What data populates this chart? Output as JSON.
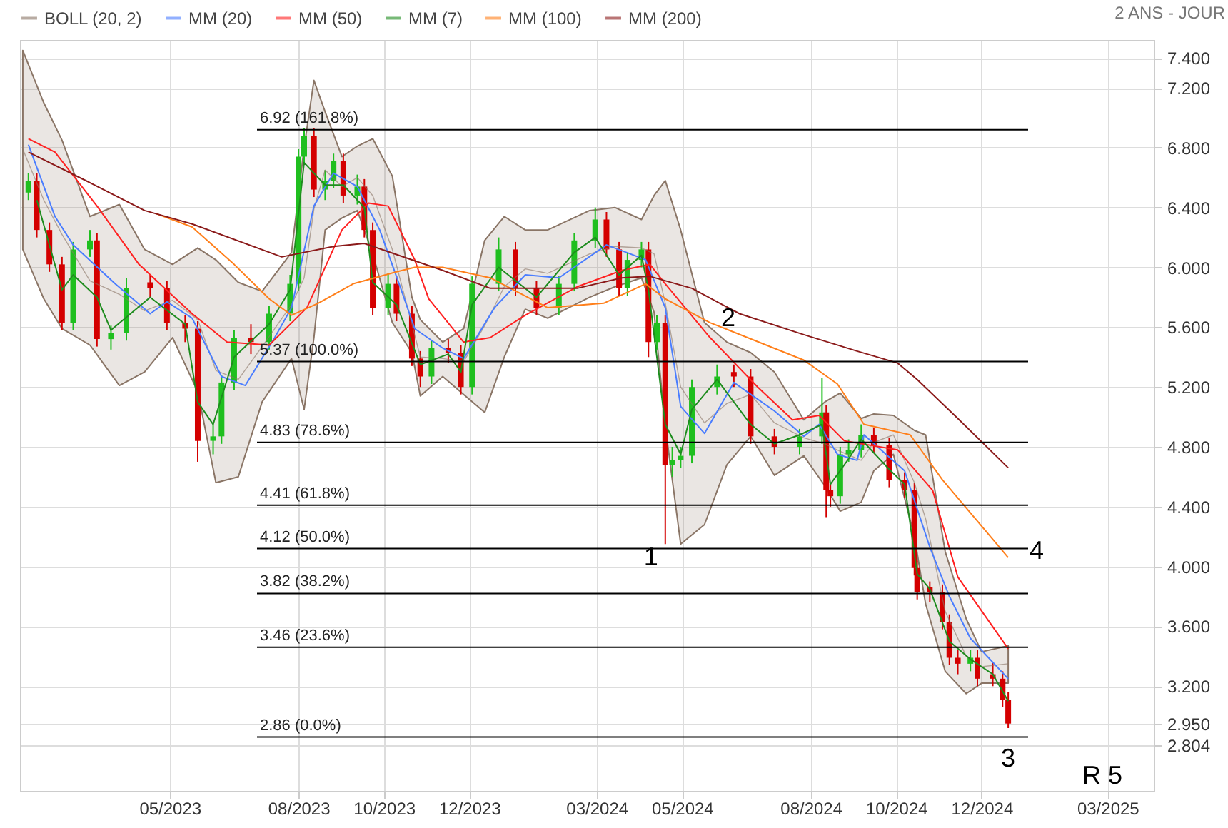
{
  "chart_data": {
    "type": "candlestick",
    "x": [
      "2023-01-20",
      "2023-01-26",
      "2023-02-04",
      "2023-02-13",
      "2023-02-21",
      "2023-03-05",
      "2023-03-10",
      "2023-03-20",
      "2023-03-31",
      "2023-04-17",
      "2023-04-29",
      "2023-05-12",
      "2023-05-21",
      "2023-06-01",
      "2023-06-07",
      "2023-06-16",
      "2023-06-28",
      "2023-07-11",
      "2023-07-26",
      "2023-08-01",
      "2023-08-05",
      "2023-08-12",
      "2023-08-20",
      "2023-08-26",
      "2023-09-02",
      "2023-09-12",
      "2023-09-17",
      "2023-09-23",
      "2023-10-04",
      "2023-10-10",
      "2023-10-21",
      "2023-10-27",
      "2023-11-04",
      "2023-11-16",
      "2023-11-25",
      "2023-12-03",
      "2023-12-22",
      "2024-01-03",
      "2024-01-18",
      "2024-02-03",
      "2024-02-14",
      "2024-02-29",
      "2024-03-08",
      "2024-03-17",
      "2024-03-23",
      "2024-04-02",
      "2024-04-07",
      "2024-04-13",
      "2024-04-19",
      "2024-04-24",
      "2024-04-30",
      "2024-05-08",
      "2024-05-26",
      "2024-06-07",
      "2024-06-19",
      "2024-07-06",
      "2024-07-24",
      "2024-08-09",
      "2024-08-12",
      "2024-08-15",
      "2024-08-22",
      "2024-08-28",
      "2024-09-06",
      "2024-09-15",
      "2024-09-26",
      "2024-10-07",
      "2024-10-14",
      "2024-10-16",
      "2024-10-25",
      "2024-11-03",
      "2024-11-08",
      "2024-11-14",
      "2024-11-23",
      "2024-11-28",
      "2024-12-09",
      "2024-12-16",
      "2024-12-20"
    ],
    "ohlc": [
      [
        6.5,
        6.63,
        6.45,
        6.58
      ],
      [
        6.58,
        6.63,
        6.2,
        6.25
      ],
      [
        6.25,
        6.3,
        5.97,
        6.02
      ],
      [
        6.02,
        6.07,
        5.58,
        5.63
      ],
      [
        5.63,
        6.17,
        5.58,
        6.12
      ],
      [
        6.12,
        6.25,
        6.07,
        6.18
      ],
      [
        6.18,
        6.23,
        5.47,
        5.52
      ],
      [
        5.52,
        5.61,
        5.45,
        5.56
      ],
      [
        5.56,
        5.93,
        5.51,
        5.86
      ],
      [
        5.9,
        5.95,
        5.8,
        5.86
      ],
      [
        5.86,
        5.91,
        5.58,
        5.63
      ],
      [
        5.63,
        5.68,
        5.5,
        5.59
      ],
      [
        5.59,
        5.64,
        4.7,
        4.84
      ],
      [
        4.84,
        4.95,
        4.75,
        4.87
      ],
      [
        4.87,
        5.28,
        4.82,
        5.23
      ],
      [
        5.23,
        5.58,
        5.18,
        5.53
      ],
      [
        5.53,
        5.62,
        5.42,
        5.5
      ],
      [
        5.5,
        5.74,
        5.45,
        5.69
      ],
      [
        5.69,
        5.95,
        5.64,
        5.89
      ],
      [
        5.89,
        6.79,
        5.84,
        6.74
      ],
      [
        6.74,
        6.93,
        6.69,
        6.88
      ],
      [
        6.88,
        6.93,
        6.47,
        6.52
      ],
      [
        6.52,
        6.65,
        6.45,
        6.58
      ],
      [
        6.58,
        6.76,
        6.53,
        6.71
      ],
      [
        6.71,
        6.76,
        6.43,
        6.48
      ],
      [
        6.48,
        6.62,
        6.42,
        6.54
      ],
      [
        6.54,
        6.59,
        6.2,
        6.25
      ],
      [
        6.25,
        6.3,
        5.68,
        5.73
      ],
      [
        5.73,
        5.96,
        5.68,
        5.89
      ],
      [
        5.89,
        5.94,
        5.64,
        5.69
      ],
      [
        5.69,
        5.74,
        5.34,
        5.39
      ],
      [
        5.39,
        5.44,
        5.2,
        5.27
      ],
      [
        5.27,
        5.51,
        5.22,
        5.46
      ],
      [
        5.46,
        5.52,
        5.36,
        5.43
      ],
      [
        5.43,
        5.48,
        5.15,
        5.2
      ],
      [
        5.2,
        5.94,
        5.15,
        5.89
      ],
      [
        5.89,
        6.2,
        5.84,
        6.12
      ],
      [
        6.12,
        6.17,
        5.81,
        5.86
      ],
      [
        5.86,
        5.91,
        5.68,
        5.73
      ],
      [
        5.73,
        5.94,
        5.68,
        5.89
      ],
      [
        5.89,
        6.23,
        5.84,
        6.18
      ],
      [
        6.18,
        6.4,
        6.13,
        6.32
      ],
      [
        6.32,
        6.37,
        6.07,
        6.12
      ],
      [
        6.12,
        6.17,
        5.81,
        5.86
      ],
      [
        5.86,
        6.1,
        5.81,
        6.05
      ],
      [
        6.05,
        6.17,
        6.0,
        6.12
      ],
      [
        6.12,
        6.17,
        5.4,
        5.5
      ],
      [
        5.5,
        5.68,
        5.45,
        5.63
      ],
      [
        5.63,
        5.68,
        4.15,
        4.68
      ],
      [
        4.68,
        4.8,
        4.6,
        4.71
      ],
      [
        4.71,
        4.8,
        4.66,
        4.74
      ],
      [
        4.74,
        5.25,
        4.69,
        5.2
      ],
      [
        5.2,
        5.35,
        5.15,
        5.27
      ],
      [
        5.3,
        5.35,
        5.2,
        5.27
      ],
      [
        5.27,
        5.32,
        4.82,
        4.87
      ],
      [
        4.87,
        4.92,
        4.75,
        4.8
      ],
      [
        4.8,
        4.92,
        4.75,
        4.87
      ],
      [
        4.87,
        5.26,
        4.82,
        5.03
      ],
      [
        5.03,
        5.08,
        4.33,
        4.51
      ],
      [
        4.51,
        4.56,
        4.4,
        4.47
      ],
      [
        4.47,
        4.8,
        4.42,
        4.75
      ],
      [
        4.75,
        4.85,
        4.7,
        4.78
      ],
      [
        4.78,
        4.95,
        4.73,
        4.88
      ],
      [
        4.88,
        4.93,
        4.76,
        4.81
      ],
      [
        4.81,
        4.86,
        4.53,
        4.58
      ],
      [
        4.58,
        4.63,
        4.46,
        4.51
      ],
      [
        4.51,
        4.56,
        3.94,
        3.99
      ],
      [
        3.99,
        4.04,
        3.78,
        3.83
      ],
      [
        3.86,
        3.9,
        3.76,
        3.83
      ],
      [
        3.83,
        3.88,
        3.58,
        3.63
      ],
      [
        3.63,
        3.68,
        3.34,
        3.39
      ],
      [
        3.39,
        3.44,
        3.28,
        3.35
      ],
      [
        3.35,
        3.44,
        3.3,
        3.39
      ],
      [
        3.39,
        3.44,
        3.2,
        3.25
      ],
      [
        3.28,
        3.36,
        3.2,
        3.25
      ],
      [
        3.25,
        3.3,
        3.06,
        3.11
      ],
      [
        3.11,
        3.16,
        2.92,
        2.95
      ]
    ],
    "colors": [
      "#1fbf1f",
      "#d40000",
      "#d40000",
      "#d40000",
      "#1fbf1f",
      "#1fbf1f",
      "#d40000",
      "#1fbf1f",
      "#1fbf1f",
      "#d40000",
      "#d40000",
      "#d40000",
      "#d40000",
      "#1fbf1f",
      "#1fbf1f",
      "#1fbf1f",
      "#d40000",
      "#1fbf1f",
      "#1fbf1f",
      "#1fbf1f",
      "#1fbf1f",
      "#d40000",
      "#1fbf1f",
      "#1fbf1f",
      "#d40000",
      "#1fbf1f",
      "#d40000",
      "#d40000",
      "#1fbf1f",
      "#d40000",
      "#d40000",
      "#d40000",
      "#1fbf1f",
      "#d40000",
      "#d40000",
      "#1fbf1f",
      "#1fbf1f",
      "#d40000",
      "#d40000",
      "#1fbf1f",
      "#1fbf1f",
      "#1fbf1f",
      "#d40000",
      "#d40000",
      "#1fbf1f",
      "#1fbf1f",
      "#d40000",
      "#1fbf1f",
      "#d40000",
      "#1fbf1f",
      "#1fbf1f",
      "#1fbf1f",
      "#1fbf1f",
      "#d40000",
      "#d40000",
      "#d40000",
      "#1fbf1f",
      "#1fbf1f",
      "#d40000",
      "#d40000",
      "#1fbf1f",
      "#1fbf1f",
      "#1fbf1f",
      "#d40000",
      "#d40000",
      "#d40000",
      "#d40000",
      "#d40000",
      "#d40000",
      "#d40000",
      "#d40000",
      "#d40000",
      "#1fbf1f",
      "#d40000",
      "#d40000",
      "#d40000",
      "#d40000"
    ],
    "series": [
      {
        "name": "BOLL (20, 2)",
        "type": "line",
        "color": "#8a7566",
        "values": [
          6.79,
          6.45,
          6.22,
          5.91,
          5.82,
          5.71,
          5.78,
          5.65,
          5.31,
          5.25,
          5.47,
          5.75,
          5.93,
          6.39,
          6.65,
          6.54,
          6.6,
          6.48,
          6.12,
          5.62,
          5.4,
          5.39,
          5.37,
          5.61,
          5.87,
          5.99,
          5.96,
          6.09,
          6.14,
          6.13,
          6.09,
          5.76,
          5.2,
          4.96,
          5.09,
          5.15,
          4.96,
          4.86,
          4.82,
          4.77,
          4.71,
          4.83,
          4.88,
          4.56,
          4.32,
          3.7,
          3.4,
          3.33,
          3.35
        ],
        "x": [
          "2023-01-16",
          "2023-01-31",
          "2023-02-13",
          "2023-03-05",
          "2023-03-26",
          "2023-04-13",
          "2023-05-03",
          "2023-05-21",
          "2023-06-03",
          "2023-06-19",
          "2023-07-06",
          "2023-07-27",
          "2023-08-05",
          "2023-08-12",
          "2023-08-20",
          "2023-09-01",
          "2023-09-12",
          "2023-09-23",
          "2023-10-07",
          "2023-10-21",
          "2023-10-27",
          "2023-11-12",
          "2023-11-27",
          "2023-12-12",
          "2023-12-26",
          "2024-01-10",
          "2024-01-26",
          "2024-02-25",
          "2024-03-14",
          "2024-04-02",
          "2024-04-11",
          "2024-04-19",
          "2024-04-30",
          "2024-05-17",
          "2024-06-02",
          "2024-06-19",
          "2024-07-06",
          "2024-07-27",
          "2024-08-11",
          "2024-08-22",
          "2024-09-06",
          "2024-09-15",
          "2024-09-29",
          "2024-10-14",
          "2024-10-22",
          "2024-11-05",
          "2024-11-20",
          "2024-12-01",
          "2024-12-20"
        ],
        "lower": [
          6.12,
          5.79,
          5.59,
          5.48,
          5.21,
          5.3,
          5.53,
          5.17,
          4.56,
          4.6,
          5.1,
          5.39,
          5.05,
          5.53,
          6.25,
          6.33,
          6.38,
          6.09,
          5.63,
          5.43,
          5.14,
          5.27,
          5.15,
          5.03,
          5.4,
          5.72,
          5.66,
          5.8,
          5.87,
          5.93,
          5.7,
          4.94,
          4.15,
          4.28,
          4.68,
          4.87,
          4.61,
          4.74,
          4.54,
          4.37,
          4.43,
          4.64,
          4.75,
          4.2,
          3.75,
          3.3,
          3.15,
          3.22,
          3.22
        ],
        "upper": [
          7.45,
          7.1,
          6.85,
          6.34,
          6.42,
          6.12,
          6.02,
          6.13,
          6.05,
          5.9,
          5.84,
          6.1,
          6.8,
          7.25,
          7.04,
          6.74,
          6.81,
          6.86,
          6.61,
          5.8,
          5.65,
          5.5,
          5.59,
          6.18,
          6.34,
          6.25,
          6.25,
          6.38,
          6.4,
          6.32,
          6.48,
          6.58,
          6.25,
          5.63,
          5.5,
          5.43,
          5.3,
          4.98,
          5.1,
          5.16,
          4.99,
          5.02,
          5.01,
          4.91,
          4.88,
          4.1,
          3.65,
          3.43,
          3.47
        ]
      },
      {
        "name": "MM (20)",
        "type": "line",
        "color": "#4a7dff",
        "x": [
          "2023-01-20",
          "2023-02-08",
          "2023-02-21",
          "2023-03-23",
          "2023-04-17",
          "2023-04-29",
          "2023-05-17",
          "2023-06-07",
          "2023-06-24",
          "2023-07-15",
          "2023-07-27",
          "2023-08-12",
          "2023-08-26",
          "2023-09-12",
          "2023-09-28",
          "2023-10-13",
          "2023-10-23",
          "2023-11-12",
          "2023-11-27",
          "2023-12-19",
          "2024-01-10",
          "2024-02-03",
          "2024-03-08",
          "2024-03-25",
          "2024-04-05",
          "2024-04-19",
          "2024-04-30",
          "2024-05-17",
          "2024-06-07",
          "2024-07-06",
          "2024-07-27",
          "2024-08-07",
          "2024-08-20",
          "2024-09-03",
          "2024-09-08",
          "2024-10-07",
          "2024-10-25",
          "2024-11-08",
          "2024-11-23",
          "2024-12-20"
        ],
        "values": [
          6.82,
          6.34,
          6.15,
          5.89,
          5.69,
          5.77,
          5.66,
          5.27,
          5.21,
          5.53,
          5.73,
          6.41,
          6.63,
          6.54,
          6.25,
          5.86,
          5.59,
          5.46,
          5.39,
          5.73,
          5.95,
          5.93,
          6.15,
          6.09,
          6.05,
          5.73,
          5.07,
          4.89,
          5.23,
          5.04,
          4.87,
          4.95,
          4.75,
          4.71,
          4.88,
          4.64,
          4.13,
          3.8,
          3.52,
          3.25
        ]
      },
      {
        "name": "MM (50)",
        "type": "line",
        "color": "#ff2020",
        "x": [
          "2023-01-20",
          "2023-02-08",
          "2023-03-10",
          "2023-04-09",
          "2023-05-17",
          "2023-06-11",
          "2023-07-11",
          "2023-08-07",
          "2023-09-01",
          "2023-09-20",
          "2023-10-04",
          "2023-10-23",
          "2023-11-02",
          "2023-11-27",
          "2023-12-16",
          "2024-01-10",
          "2024-02-16",
          "2024-03-19",
          "2024-04-08",
          "2024-04-19",
          "2024-05-21",
          "2024-06-24",
          "2024-07-19",
          "2024-08-07",
          "2024-08-25",
          "2024-10-02",
          "2024-10-27",
          "2024-11-14",
          "2024-12-20"
        ],
        "values": [
          6.86,
          6.77,
          6.41,
          6.02,
          5.69,
          5.5,
          5.48,
          5.73,
          6.25,
          6.43,
          6.41,
          6.05,
          5.79,
          5.5,
          5.53,
          5.68,
          5.87,
          5.98,
          6.02,
          5.89,
          5.53,
          5.2,
          4.98,
          5.01,
          4.84,
          4.78,
          4.51,
          3.93,
          3.45
        ]
      },
      {
        "name": "MM (7)",
        "type": "line",
        "color": "#1e8c1e",
        "x": [
          "2023-01-26",
          "2023-02-13",
          "2023-02-21",
          "2023-03-10",
          "2023-03-20",
          "2023-04-17",
          "2023-05-12",
          "2023-05-21",
          "2023-06-01",
          "2023-06-16",
          "2023-07-11",
          "2023-07-26",
          "2023-08-05",
          "2023-08-20",
          "2023-09-02",
          "2023-09-17",
          "2023-09-23",
          "2023-10-10",
          "2023-10-27",
          "2023-11-16",
          "2023-11-25",
          "2023-12-03",
          "2023-12-22",
          "2024-01-18",
          "2024-02-14",
          "2024-02-29",
          "2024-03-17",
          "2024-04-02",
          "2024-04-07",
          "2024-04-19",
          "2024-04-30",
          "2024-05-08",
          "2024-05-26",
          "2024-06-19",
          "2024-07-06",
          "2024-07-24",
          "2024-08-09",
          "2024-08-15",
          "2024-08-28",
          "2024-09-06",
          "2024-09-26",
          "2024-10-07",
          "2024-10-16",
          "2024-10-25",
          "2024-11-08",
          "2024-11-23",
          "2024-12-09",
          "2024-12-20"
        ],
        "values": [
          6.45,
          5.85,
          5.95,
          5.8,
          5.58,
          5.8,
          5.62,
          5.1,
          4.95,
          5.4,
          5.62,
          5.85,
          6.7,
          6.55,
          6.55,
          6.4,
          5.9,
          5.75,
          5.35,
          5.42,
          5.3,
          5.75,
          6.0,
          5.8,
          6.1,
          6.2,
          5.95,
          6.08,
          5.85,
          4.95,
          4.75,
          5.05,
          5.25,
          4.95,
          4.82,
          4.88,
          4.95,
          4.55,
          4.72,
          4.85,
          4.65,
          4.55,
          3.95,
          3.85,
          3.5,
          3.38,
          3.28,
          3.1
        ]
      },
      {
        "name": "MM (100)",
        "type": "line",
        "color": "#ff7f1a",
        "x": [
          "2023-04-21",
          "2023-05-17",
          "2023-06-16",
          "2023-07-11",
          "2023-07-27",
          "2023-08-15",
          "2023-09-09",
          "2023-10-10",
          "2023-10-23",
          "2023-11-12",
          "2023-12-16",
          "2024-01-26",
          "2024-03-06",
          "2024-04-05",
          "2024-04-19",
          "2024-05-21",
          "2024-07-27",
          "2024-08-20",
          "2024-09-08",
          "2024-10-11",
          "2024-11-03",
          "2024-12-20"
        ],
        "values": [
          6.36,
          6.27,
          6.02,
          5.79,
          5.68,
          5.76,
          5.89,
          5.97,
          6.0,
          6.0,
          5.93,
          5.73,
          5.76,
          5.89,
          5.79,
          5.63,
          5.38,
          5.22,
          4.95,
          4.88,
          4.58,
          4.06
        ]
      },
      {
        "name": "MM (200)",
        "type": "line",
        "color": "#8b1a1a",
        "x": [
          "2023-01-20",
          "2023-03-02",
          "2023-04-13",
          "2023-05-17",
          "2023-07-20",
          "2023-08-26",
          "2023-09-17",
          "2023-10-21",
          "2023-11-12",
          "2023-12-16",
          "2024-02-16",
          "2024-03-19",
          "2024-04-08",
          "2024-05-08",
          "2024-06-11",
          "2024-07-27",
          "2024-09-03",
          "2024-10-02",
          "2024-10-16",
          "2024-11-14",
          "2024-12-20"
        ],
        "values": [
          6.77,
          6.58,
          6.38,
          6.29,
          6.07,
          6.14,
          6.16,
          6.05,
          5.98,
          5.86,
          5.86,
          5.93,
          5.94,
          5.86,
          5.69,
          5.55,
          5.44,
          5.36,
          5.25,
          4.99,
          4.66
        ]
      }
    ],
    "xlim": [
      "2023-01-14",
      "2025-04-03"
    ],
    "xticks": [
      {
        "value": "2023-05-01",
        "label": "05/2023"
      },
      {
        "value": "2023-08-01",
        "label": "08/2023"
      },
      {
        "value": "2023-10-01",
        "label": "10/2023"
      },
      {
        "value": "2023-12-01",
        "label": "12/2023"
      },
      {
        "value": "2024-03-01",
        "label": "03/2024"
      },
      {
        "value": "2024-05-01",
        "label": "05/2024"
      },
      {
        "value": "2024-08-01",
        "label": "08/2024"
      },
      {
        "value": "2024-10-01",
        "label": "10/2024"
      },
      {
        "value": "2024-12-01",
        "label": "12/2024"
      },
      {
        "value": "2025-03-01",
        "label": "03/2025"
      }
    ],
    "ylim": [
      2.5,
      7.52
    ],
    "yticks": [
      {
        "value": 2.804,
        "label": "2.804"
      },
      {
        "value": 2.95,
        "label": "2.950"
      },
      {
        "value": 7.4,
        "label": "7.400"
      },
      {
        "value": 3.2,
        "label": "3.200"
      },
      {
        "value": 3.6,
        "label": "3.600"
      },
      {
        "value": 4.0,
        "label": "4.000"
      },
      {
        "value": 4.4,
        "label": "4.400"
      },
      {
        "value": 4.8,
        "label": "4.800"
      },
      {
        "value": 5.2,
        "label": "5.200"
      },
      {
        "value": 5.6,
        "label": "5.600"
      },
      {
        "value": 6.0,
        "label": "6.000"
      },
      {
        "value": 6.4,
        "label": "6.400"
      },
      {
        "value": 6.8,
        "label": "6.800"
      },
      {
        "value": 7.2,
        "label": "7.200"
      }
    ],
    "ref_lines": [
      {
        "axis": "y",
        "value": 6.92,
        "label": "6.92  (161.8%)",
        "color": "#000000"
      },
      {
        "axis": "y",
        "value": 5.37,
        "label": "5.37  (100.0%)",
        "color": "#000000"
      },
      {
        "axis": "y",
        "value": 4.83,
        "label": "4.83  (78.6%)",
        "color": "#000000"
      },
      {
        "axis": "y",
        "value": 4.41,
        "label": "4.41  (61.8%)",
        "color": "#000000"
      },
      {
        "axis": "y",
        "value": 4.12,
        "label": "4.12  (50.0%)",
        "color": "#000000"
      },
      {
        "axis": "y",
        "value": 3.82,
        "label": "3.82  (38.2%)",
        "color": "#000000"
      },
      {
        "axis": "y",
        "value": 3.46,
        "label": "3.46  (23.6%)",
        "color": "#000000"
      },
      {
        "axis": "y",
        "value": 2.86,
        "label": "2.86  (0.0%)",
        "color": "#000000"
      }
    ],
    "annotations": [
      "2 ANS - JOUR",
      {
        "text": "1",
        "x": "2024-04-19",
        "y": 4.15
      },
      {
        "text": "2",
        "x": "2024-06-03",
        "y": 5.54
      },
      {
        "text": "3",
        "x": "2024-12-20",
        "y": 2.92
      },
      {
        "text": "4",
        "x": "2024-12-20",
        "y": 4.06
      },
      "R 5"
    ],
    "grid": true,
    "legend": "top left"
  }
}
